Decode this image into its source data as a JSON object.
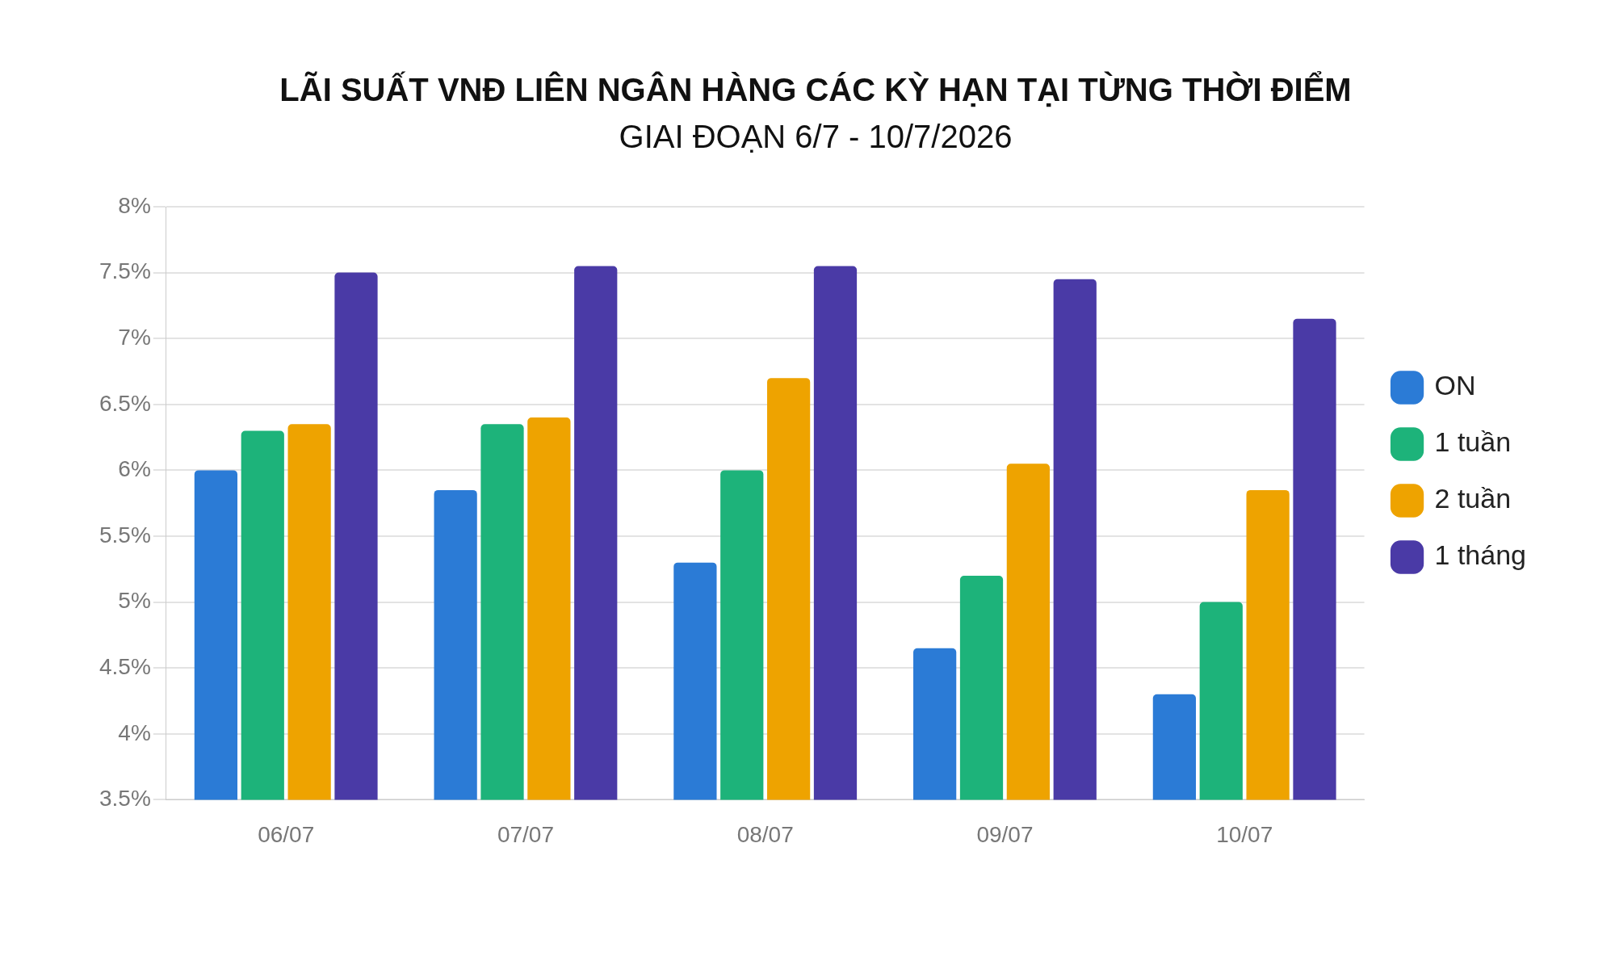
{
  "chart_data": {
    "type": "bar",
    "title": "LÃI SUẤT VNĐ LIÊN NGÂN HÀNG CÁC KỲ HẠN TẠI TỪNG THỜI ĐIỂM",
    "subtitle": "GIAI ĐOẠN 6/7 - 10/7/2026",
    "categories": [
      "06/07",
      "07/07",
      "08/07",
      "09/07",
      "10/07"
    ],
    "series": [
      {
        "name": "ON",
        "color": "#2b7bd6",
        "values": [
          6.0,
          5.85,
          5.3,
          4.65,
          4.3
        ]
      },
      {
        "name": "1 tuần",
        "color": "#1db37a",
        "values": [
          6.3,
          6.35,
          6.0,
          5.2,
          5.0
        ]
      },
      {
        "name": "2 tuần",
        "color": "#eea300",
        "values": [
          6.35,
          6.4,
          6.7,
          6.05,
          5.85
        ]
      },
      {
        "name": "1 tháng",
        "color": "#4a3aa6",
        "values": [
          7.5,
          7.55,
          7.55,
          7.45,
          7.15
        ]
      }
    ],
    "ylim": [
      3.5,
      8
    ],
    "yticks": [
      {
        "value": 3.5,
        "label": "3.5%"
      },
      {
        "value": 4,
        "label": "4%"
      },
      {
        "value": 4.5,
        "label": "4.5%"
      },
      {
        "value": 5,
        "label": "5%"
      },
      {
        "value": 5.5,
        "label": "5.5%"
      },
      {
        "value": 6,
        "label": "6%"
      },
      {
        "value": 6.5,
        "label": "6.5%"
      },
      {
        "value": 7,
        "label": "7%"
      },
      {
        "value": 7.5,
        "label": "7.5%"
      },
      {
        "value": 8,
        "label": "8%"
      }
    ],
    "grid": "y",
    "legend": "right"
  }
}
